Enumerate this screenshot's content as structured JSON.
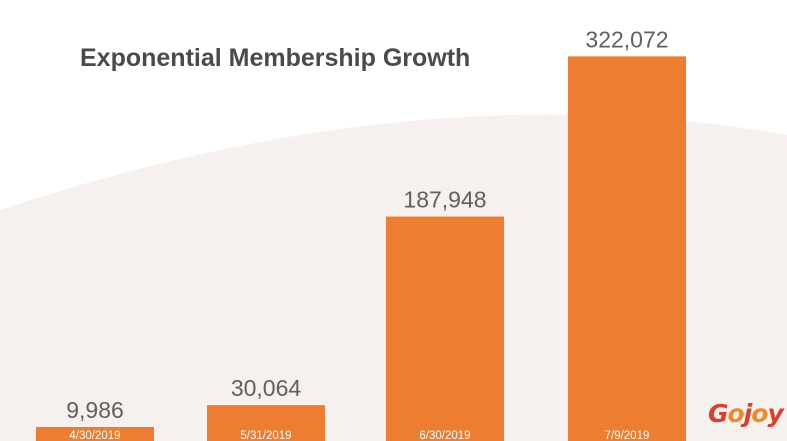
{
  "colors": {
    "bar": "#ed7d31",
    "title": "#4a4a4a",
    "value_label": "#606060",
    "background_swoosh": "#f6f1ef"
  },
  "chart_data": {
    "type": "bar",
    "title": "Exponential Membership Growth",
    "categories": [
      "4/30/2019",
      "5/31/2019",
      "6/30/2019",
      "7/9/2019"
    ],
    "values": [
      9986,
      30064,
      187948,
      322072
    ],
    "data_labels": [
      "9,986",
      "30,064",
      "187,948",
      "322,072"
    ],
    "ylim": [
      0,
      345000
    ],
    "grid": false,
    "legend": "none"
  },
  "logo": {
    "text": "Gojoy",
    "colors": [
      "#d9402a",
      "#f08a24",
      "#d9402a",
      "#f08a24",
      "#d9402a"
    ]
  }
}
